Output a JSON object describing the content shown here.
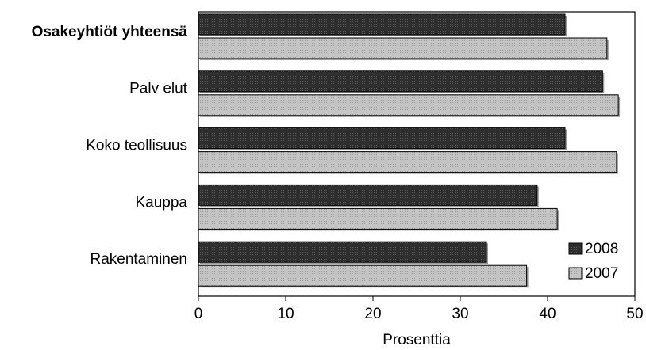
{
  "chart_data": {
    "type": "bar",
    "orientation": "horizontal",
    "categories": [
      "Osakeyhtiöt yhteensä",
      "Palv elut",
      "Koko teollisuus",
      "Kauppa",
      "Rakentaminen"
    ],
    "bold_categories": [
      "Osakeyhtiöt yhteensä"
    ],
    "series": [
      {
        "name": "2008",
        "values": [
          42.0,
          46.3,
          42.0,
          38.8,
          33.0
        ],
        "color": "#3a3a3a"
      },
      {
        "name": "2007",
        "values": [
          46.8,
          48.1,
          47.9,
          41.1,
          37.6
        ],
        "color": "#bdbdbd"
      }
    ],
    "xlabel": "Prosenttia",
    "ylabel": "",
    "xlim": [
      0,
      50
    ],
    "xticks": [
      "0",
      "10",
      "20",
      "30",
      "40",
      "50"
    ],
    "grid": false,
    "legend": "bottom-right"
  }
}
